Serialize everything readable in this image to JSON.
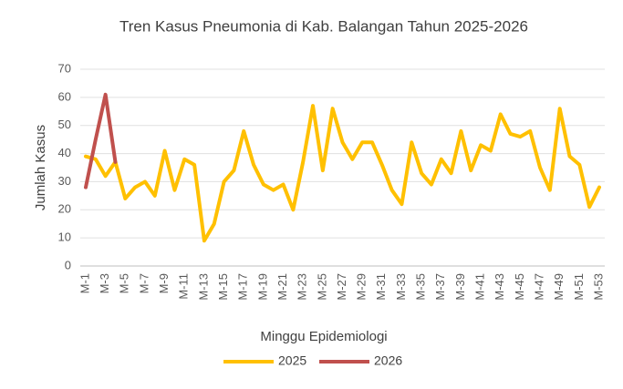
{
  "chart_data": {
    "type": "line",
    "title": "Tren Kasus Pneumonia di Kab. Balangan Tahun 2025-2026",
    "x_label": "Minggu Epidemiologi",
    "y_label": "Jumlah Kasus",
    "categories": [
      "M-1",
      null,
      "M-3",
      null,
      "M-5",
      null,
      "M-7",
      null,
      "M-9",
      null,
      "M-11",
      null,
      "M-13",
      null,
      "M-15",
      null,
      "M-17",
      null,
      "M-19",
      null,
      "M-21",
      null,
      "M-23",
      null,
      "M-25",
      null,
      "M-27",
      null,
      "M-29",
      null,
      "M-31",
      null,
      "M-33",
      null,
      "M-35",
      null,
      "M-37",
      null,
      "M-39",
      null,
      "M-41",
      null,
      "M-43",
      null,
      "M-45",
      null,
      "M-47",
      null,
      "M-49",
      null,
      "M-51",
      null,
      "M-53"
    ],
    "series": [
      {
        "name": "2025",
        "color": "#FFC000",
        "values": [
          39,
          38,
          32,
          37,
          24,
          28,
          30,
          25,
          41,
          27,
          38,
          36,
          9,
          15,
          30,
          34,
          48,
          36,
          29,
          27,
          29,
          20,
          37,
          57,
          34,
          56,
          44,
          38,
          44,
          44,
          36,
          27,
          22,
          44,
          33,
          29,
          38,
          33,
          48,
          34,
          43,
          41,
          54,
          47,
          46,
          48,
          35,
          27,
          56,
          39,
          36,
          21,
          28
        ]
      },
      {
        "name": "2026",
        "color": "#C0504D",
        "values": [
          28,
          45,
          61,
          37,
          null,
          null,
          null,
          null,
          null,
          null,
          null,
          null,
          null,
          null,
          null,
          null,
          null,
          null,
          null,
          null,
          null,
          null,
          null,
          null,
          null,
          null,
          null,
          null,
          null,
          null,
          null,
          null,
          null,
          null,
          null,
          null,
          null,
          null,
          null,
          null,
          null,
          null,
          null,
          null,
          null,
          null,
          null,
          null,
          null,
          null,
          null,
          null,
          null
        ]
      }
    ],
    "ylim": [
      0,
      70
    ],
    "yticks": [
      0,
      10,
      20,
      30,
      40,
      50,
      60,
      70
    ],
    "grid": true,
    "legend": "bottom"
  }
}
